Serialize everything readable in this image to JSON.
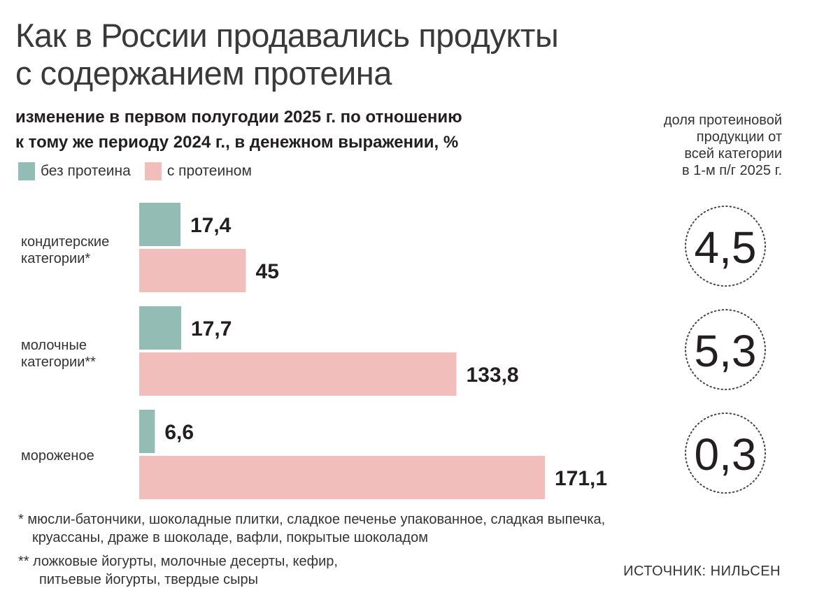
{
  "title_line1": "Как в России продавались продукты",
  "title_line2": "с содержанием протеина",
  "subtitle_line1": "изменение в первом полугодии 2025 г. по отношению",
  "subtitle_line2": "к тому же периоду 2024 г., в денежном выражении, %",
  "share_title_line1": "доля протеиновой",
  "share_title_line2": "продукции от",
  "share_title_line3": "всей категории",
  "share_title_line4": "в 1-м п/г 2025 г.",
  "colors": {
    "without": "#93bcb5",
    "with": "#f2bebc",
    "text": "#231f20"
  },
  "chart_data": {
    "type": "bar",
    "orientation": "horizontal",
    "legend": [
      {
        "name": "без протеина",
        "color": "#93bcb5"
      },
      {
        "name": "с протеином",
        "color": "#f2bebc"
      }
    ],
    "categories": [
      {
        "label_line1": "кондитерские",
        "label_line2": "категории*"
      },
      {
        "label_line1": "молочные",
        "label_line2": "категории**"
      },
      {
        "label_line1": "мороженое",
        "label_line2": ""
      }
    ],
    "series": [
      {
        "name": "без протеина",
        "values": [
          17.4,
          17.7,
          6.6
        ],
        "labels": [
          "17,4",
          "17,7",
          "6,6"
        ]
      },
      {
        "name": "с протеином",
        "values": [
          45,
          133.8,
          171.1
        ],
        "labels": [
          "45",
          "133,8",
          "171,1"
        ]
      }
    ],
    "share": {
      "values": [
        4.5,
        5.3,
        0.3
      ],
      "labels": [
        "4,5",
        "5,3",
        "0,3"
      ]
    },
    "xlim": [
      0,
      171.1
    ]
  },
  "footnote1_line1": "* мюсли-батончики, шоколадные плитки, сладкое печенье упакованное, сладкая выпечка,",
  "footnote1_line2": "круассаны, драже в шоколаде, вафли, покрытые шоколадом",
  "footnote2_line1": "** ложковые йогурты, молочные десерты, кефир,",
  "footnote2_line2": "питьевые йогурты, твердые сыры",
  "source": "ИСТОЧНИК: НИЛЬСЕН"
}
